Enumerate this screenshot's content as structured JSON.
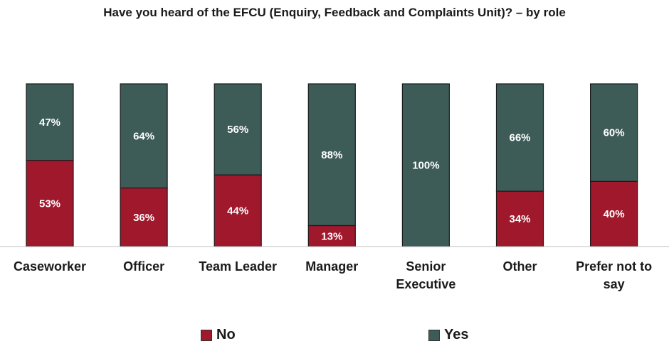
{
  "title": "Have you heard of the EFCU (Enquiry, Feedback and Complaints Unit)? – by role",
  "colors": {
    "no": "#a0182c",
    "yes": "#3d5b57"
  },
  "legend": {
    "no_label": "No",
    "yes_label": "Yes"
  },
  "chart_data": {
    "type": "bar",
    "stacked": true,
    "normalized": true,
    "categories": [
      "Caseworker",
      "Officer",
      "Team Leader",
      "Manager",
      "Senior Executive",
      "Other",
      "Prefer not to say"
    ],
    "series": [
      {
        "name": "No",
        "values": [
          53,
          36,
          44,
          13,
          0,
          34,
          40
        ],
        "labels": [
          "53%",
          "36%",
          "44%",
          "13%",
          "",
          "34%",
          "40%"
        ]
      },
      {
        "name": "Yes",
        "values": [
          47,
          64,
          56,
          88,
          100,
          66,
          60
        ],
        "labels": [
          "47%",
          "64%",
          "56%",
          "88%",
          "100%",
          "66%",
          "60%"
        ]
      }
    ],
    "ylim": [
      0,
      100
    ],
    "grid": false,
    "legend_position": "bottom"
  }
}
